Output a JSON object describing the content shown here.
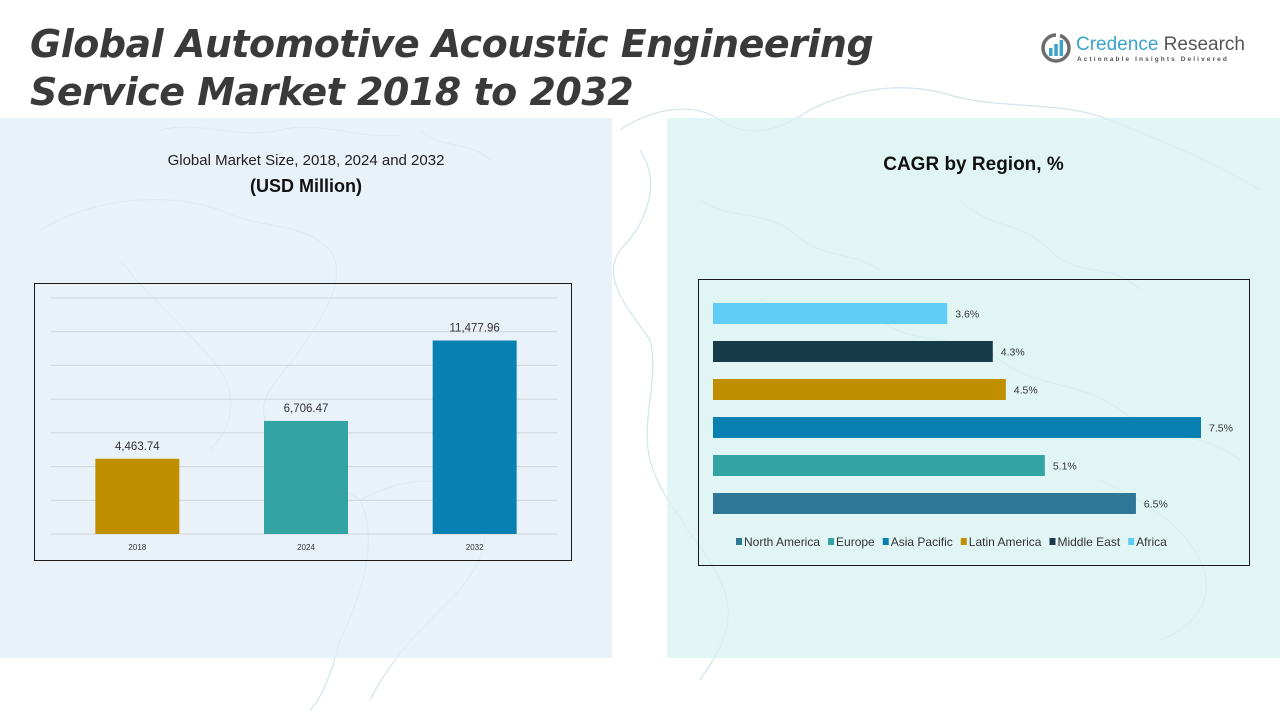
{
  "header": {
    "title_line1": "Global Automotive Acoustic Engineering",
    "title_line2": "Service Market 2018 to 2032"
  },
  "logo": {
    "name_part1": "Credence",
    "name_part2": "Research",
    "tagline": "Actionable Insights Delivered",
    "icon": "bar-chart-circle-icon"
  },
  "left_panel": {
    "subtitle": "Global Market Size, 2018, 2024 and 2032",
    "unit": "(USD Million)"
  },
  "right_panel": {
    "subtitle": "CAGR by Region, %"
  },
  "chart_data": [
    {
      "type": "bar",
      "title": "Global Market Size, 2018, 2024 and 2032 (USD Million)",
      "categories": [
        "2018",
        "2024",
        "2032"
      ],
      "values": [
        4463.74,
        6706.47,
        11477.96
      ],
      "labels": [
        "4,463.74",
        "6,706.47",
        "11,477.96"
      ],
      "colors": [
        "#bf8f00",
        "#33a3a3",
        "#0980b2"
      ],
      "xlabel": "",
      "ylabel": "",
      "ylim": [
        0,
        14000
      ],
      "grid": true,
      "gridlines": 7
    },
    {
      "type": "bar",
      "orientation": "horizontal",
      "title": "CAGR by Region, %",
      "categories": [
        "Africa",
        "Middle East",
        "Latin America",
        "Asia Pacific",
        "Europe",
        "North America"
      ],
      "values": [
        3.6,
        4.3,
        4.5,
        7.5,
        5.1,
        6.5
      ],
      "labels": [
        "3.6%",
        "4.3%",
        "4.5%",
        "7.5%",
        "5.1%",
        "6.5%"
      ],
      "colors": [
        "#5fcdf5",
        "#183b4a",
        "#bf8f00",
        "#0980b2",
        "#33a3a3",
        "#2e7796"
      ],
      "xlim": [
        0,
        7.5
      ],
      "grid": false,
      "legend": {
        "placement": "bottom",
        "entries": [
          {
            "label": "North America",
            "color": "#2e7796"
          },
          {
            "label": "Europe",
            "color": "#33a3a3"
          },
          {
            "label": "Asia Pacific",
            "color": "#0980b2"
          },
          {
            "label": "Latin America",
            "color": "#bf8f00"
          },
          {
            "label": "Middle East",
            "color": "#183b4a"
          },
          {
            "label": "Africa",
            "color": "#5fcdf5"
          }
        ]
      }
    }
  ]
}
